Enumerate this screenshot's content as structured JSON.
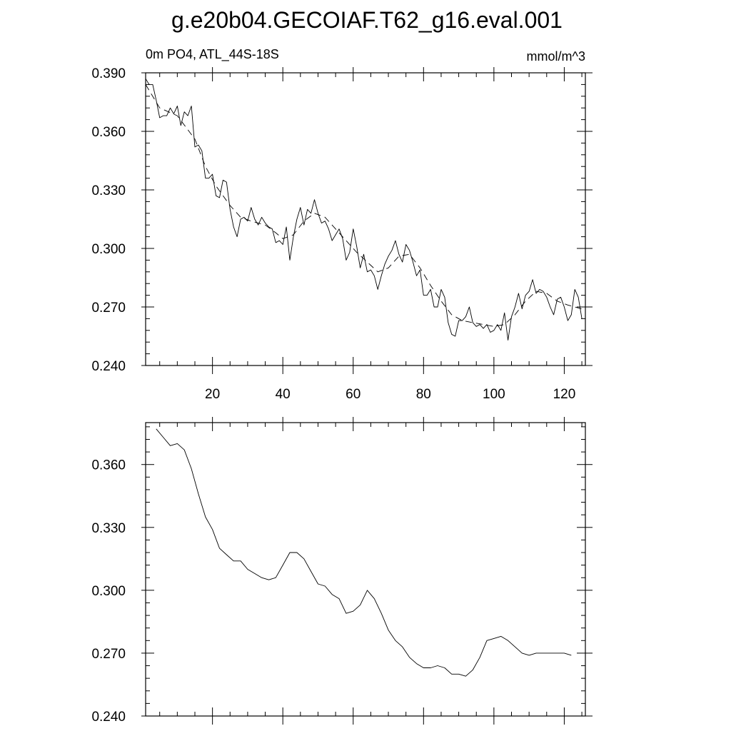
{
  "title": "g.e20b04.GECOIAF.T62_g16.eval.001",
  "chart_data": [
    {
      "type": "line",
      "subtitle_left": "0m PO4, ATL_44S-18S",
      "subtitle_right": "mmol/m^3",
      "xlim": [
        1,
        126
      ],
      "ylim": [
        0.24,
        0.39
      ],
      "x_ticks": [
        20,
        40,
        60,
        80,
        100,
        120
      ],
      "x_tick_labels": [
        "20",
        "40",
        "60",
        "80",
        "100",
        "120"
      ],
      "y_ticks": [
        0.24,
        0.27,
        0.3,
        0.33,
        0.36,
        0.39
      ],
      "y_tick_labels": [
        "0.240",
        "0.270",
        "0.300",
        "0.330",
        "0.360",
        "0.390"
      ],
      "series": [
        {
          "style": "solid",
          "x": [
            1,
            2,
            3,
            4,
            5,
            6,
            7,
            8,
            9,
            10,
            11,
            12,
            13,
            14,
            15,
            16,
            17,
            18,
            19,
            20,
            21,
            22,
            23,
            24,
            25,
            26,
            27,
            28,
            29,
            30,
            31,
            32,
            33,
            34,
            35,
            36,
            37,
            38,
            39,
            40,
            41,
            42,
            43,
            44,
            45,
            46,
            47,
            48,
            49,
            50,
            51,
            52,
            53,
            54,
            55,
            56,
            57,
            58,
            59,
            60,
            61,
            62,
            63,
            64,
            65,
            66,
            67,
            68,
            69,
            70,
            71,
            72,
            73,
            74,
            75,
            76,
            77,
            78,
            79,
            80,
            81,
            82,
            83,
            84,
            85,
            86,
            87,
            88,
            89,
            90,
            91,
            92,
            93,
            94,
            95,
            96,
            97,
            98,
            99,
            100,
            101,
            102,
            103,
            104,
            105,
            106,
            107,
            108,
            109,
            110,
            111,
            112,
            113,
            114,
            115,
            116,
            117,
            118,
            119,
            120,
            121,
            122,
            123,
            124,
            125
          ],
          "y": [
            0.387,
            0.384,
            0.384,
            0.376,
            0.367,
            0.368,
            0.368,
            0.372,
            0.369,
            0.373,
            0.363,
            0.37,
            0.368,
            0.373,
            0.352,
            0.353,
            0.35,
            0.336,
            0.336,
            0.338,
            0.327,
            0.326,
            0.335,
            0.334,
            0.32,
            0.311,
            0.306,
            0.315,
            0.316,
            0.314,
            0.321,
            0.315,
            0.312,
            0.316,
            0.313,
            0.311,
            0.31,
            0.303,
            0.304,
            0.302,
            0.311,
            0.294,
            0.306,
            0.315,
            0.321,
            0.312,
            0.32,
            0.318,
            0.325,
            0.318,
            0.313,
            0.314,
            0.31,
            0.304,
            0.307,
            0.31,
            0.305,
            0.294,
            0.298,
            0.31,
            0.301,
            0.29,
            0.297,
            0.288,
            0.289,
            0.286,
            0.279,
            0.286,
            0.292,
            0.296,
            0.299,
            0.304,
            0.297,
            0.293,
            0.302,
            0.299,
            0.293,
            0.286,
            0.289,
            0.276,
            0.276,
            0.279,
            0.27,
            0.27,
            0.279,
            0.275,
            0.262,
            0.256,
            0.255,
            0.263,
            0.263,
            0.265,
            0.27,
            0.262,
            0.26,
            0.261,
            0.259,
            0.261,
            0.257,
            0.258,
            0.261,
            0.258,
            0.267,
            0.253,
            0.265,
            0.27,
            0.277,
            0.269,
            0.276,
            0.278,
            0.284,
            0.277,
            0.279,
            0.278,
            0.275,
            0.27,
            0.266,
            0.274,
            0.275,
            0.27,
            0.263,
            0.266,
            0.279,
            0.275,
            0.264
          ]
        },
        {
          "style": "dashed",
          "x": [
            1,
            5,
            10,
            15,
            18,
            21,
            25,
            28,
            31,
            35,
            38,
            40,
            43,
            46,
            49,
            52,
            55,
            58,
            61,
            64,
            67,
            70,
            73,
            76,
            79,
            82,
            85,
            88,
            91,
            94,
            97,
            100,
            103,
            106,
            109,
            112,
            115,
            118,
            121,
            125
          ],
          "y": [
            0.384,
            0.372,
            0.368,
            0.356,
            0.342,
            0.332,
            0.322,
            0.316,
            0.314,
            0.312,
            0.308,
            0.305,
            0.307,
            0.314,
            0.318,
            0.316,
            0.31,
            0.304,
            0.298,
            0.293,
            0.288,
            0.29,
            0.296,
            0.297,
            0.29,
            0.281,
            0.273,
            0.266,
            0.263,
            0.262,
            0.261,
            0.26,
            0.261,
            0.266,
            0.273,
            0.278,
            0.277,
            0.273,
            0.271,
            0.269
          ]
        }
      ]
    },
    {
      "type": "line",
      "xlim": [
        1,
        126
      ],
      "ylim": [
        0.24,
        0.38
      ],
      "x_ticks": [
        20,
        40,
        60,
        80,
        100,
        120
      ],
      "y_ticks": [
        0.24,
        0.27,
        0.3,
        0.33,
        0.36
      ],
      "y_tick_labels": [
        "0.240",
        "0.270",
        "0.300",
        "0.330",
        "0.360"
      ],
      "series": [
        {
          "style": "solid",
          "x": [
            4,
            6,
            8,
            10,
            12,
            14,
            16,
            18,
            20,
            22,
            24,
            26,
            28,
            30,
            32,
            34,
            36,
            38,
            40,
            42,
            44,
            46,
            48,
            50,
            52,
            54,
            56,
            58,
            60,
            62,
            64,
            66,
            68,
            70,
            72,
            74,
            76,
            78,
            80,
            82,
            84,
            86,
            88,
            90,
            92,
            94,
            96,
            98,
            100,
            102,
            104,
            106,
            108,
            110,
            112,
            114,
            116,
            118,
            120,
            122
          ],
          "y": [
            0.377,
            0.373,
            0.369,
            0.37,
            0.367,
            0.358,
            0.346,
            0.335,
            0.329,
            0.32,
            0.317,
            0.314,
            0.314,
            0.31,
            0.308,
            0.306,
            0.305,
            0.306,
            0.312,
            0.318,
            0.318,
            0.315,
            0.309,
            0.303,
            0.302,
            0.298,
            0.296,
            0.289,
            0.29,
            0.293,
            0.3,
            0.296,
            0.289,
            0.281,
            0.276,
            0.273,
            0.268,
            0.265,
            0.263,
            0.263,
            0.264,
            0.263,
            0.26,
            0.26,
            0.259,
            0.262,
            0.268,
            0.276,
            0.277,
            0.278,
            0.276,
            0.273,
            0.27,
            0.269,
            0.27,
            0.27,
            0.27,
            0.27,
            0.27,
            0.269
          ]
        }
      ]
    }
  ]
}
